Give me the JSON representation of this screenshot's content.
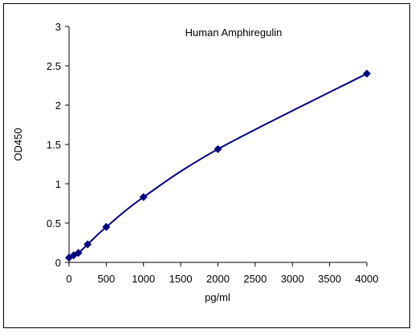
{
  "chart_data": {
    "type": "scatter",
    "title": "Human Amphiregulin",
    "xlabel": "pg/ml",
    "ylabel": "OD450",
    "xlim": [
      0,
      4000
    ],
    "ylim": [
      0,
      3
    ],
    "x_ticks": [
      "0",
      "500",
      "1000",
      "1500",
      "2000",
      "2500",
      "3000",
      "3500",
      "4000"
    ],
    "y_ticks": [
      "0",
      "0.5",
      "1",
      "1.5",
      "2",
      "2.5",
      "3"
    ],
    "grid": false,
    "legend": "none",
    "series": [
      {
        "x": [
          0,
          62.5,
          125,
          250,
          500,
          1000,
          2000,
          4000
        ],
        "y": [
          0.06,
          0.09,
          0.12,
          0.23,
          0.45,
          0.83,
          1.44,
          2.4
        ],
        "marker": "diamond",
        "color": "#000080",
        "fit_line": true
      }
    ]
  }
}
